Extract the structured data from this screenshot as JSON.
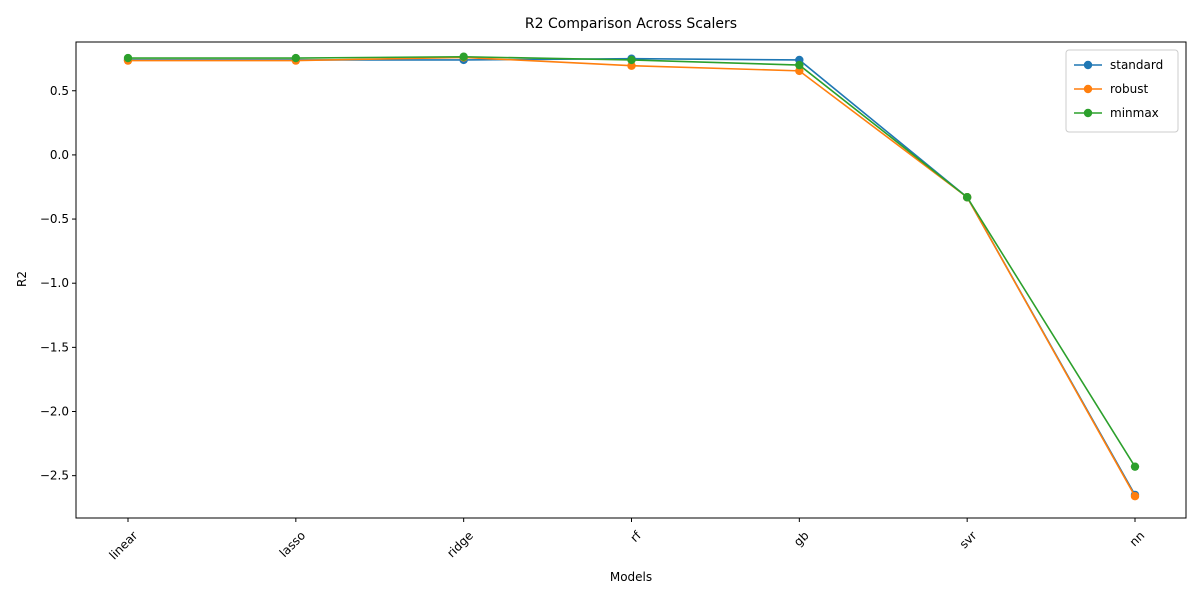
{
  "chart_data": {
    "type": "line",
    "title": "R2 Comparison Across Scalers",
    "xlabel": "Models",
    "ylabel": "R2",
    "categories": [
      "linear",
      "lasso",
      "ridge",
      "rf",
      "gb",
      "svr",
      "nn"
    ],
    "ylim": [
      -2.83,
      0.88
    ],
    "yticks": [
      0.5,
      0.0,
      -0.5,
      -1.0,
      -1.5,
      -2.0,
      -2.5
    ],
    "ytick_labels": [
      "0.5",
      "0.0",
      "−0.5",
      "−1.0",
      "−1.5",
      "−2.0",
      "−2.5"
    ],
    "grid": false,
    "legend_position": "top-right",
    "series": [
      {
        "name": "standard",
        "color": "#1f77b4",
        "values": [
          0.74,
          0.74,
          0.74,
          0.75,
          0.74,
          -0.33,
          -2.65
        ]
      },
      {
        "name": "robust",
        "color": "#ff7f0e",
        "values": [
          0.735,
          0.735,
          0.76,
          0.695,
          0.655,
          -0.33,
          -2.66
        ]
      },
      {
        "name": "minmax",
        "color": "#2ca02c",
        "values": [
          0.755,
          0.755,
          0.765,
          0.74,
          0.7,
          -0.33,
          -2.43
        ]
      }
    ]
  }
}
